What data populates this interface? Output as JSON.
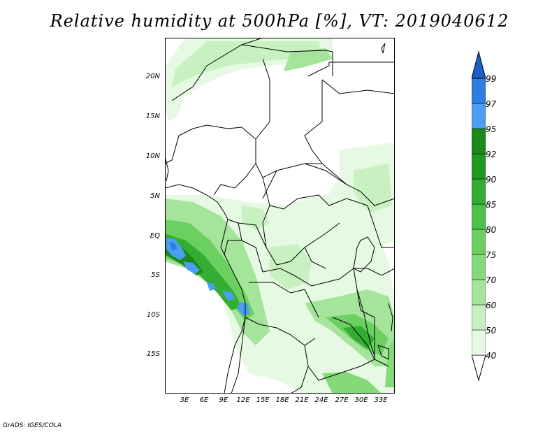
{
  "title": "Relative humidity at 500hPa [%], VT: 2019040612",
  "credit": "GrADS: IGES/COLA",
  "lat_labels": [
    "20N",
    "15N",
    "10N",
    "5N",
    "EQ",
    "5S",
    "10S",
    "15S"
  ],
  "lon_labels": [
    "3E",
    "6E",
    "9E",
    "12E",
    "15E",
    "18E",
    "21E",
    "24E",
    "27E",
    "30E",
    "33E"
  ],
  "colorbar": {
    "levels": [
      "40",
      "50",
      "60",
      "70",
      "75",
      "80",
      "85",
      "90",
      "92",
      "95",
      "97",
      "99"
    ],
    "colors": [
      "#ffffff",
      "#e6f9e2",
      "#c8f0c0",
      "#a5e49b",
      "#86d97a",
      "#6ccf62",
      "#4fc048",
      "#34ad33",
      "#1e9a21",
      "#1c8a1a",
      "#4a9ff0",
      "#2d7ee0",
      "#1d5fc8"
    ]
  }
}
